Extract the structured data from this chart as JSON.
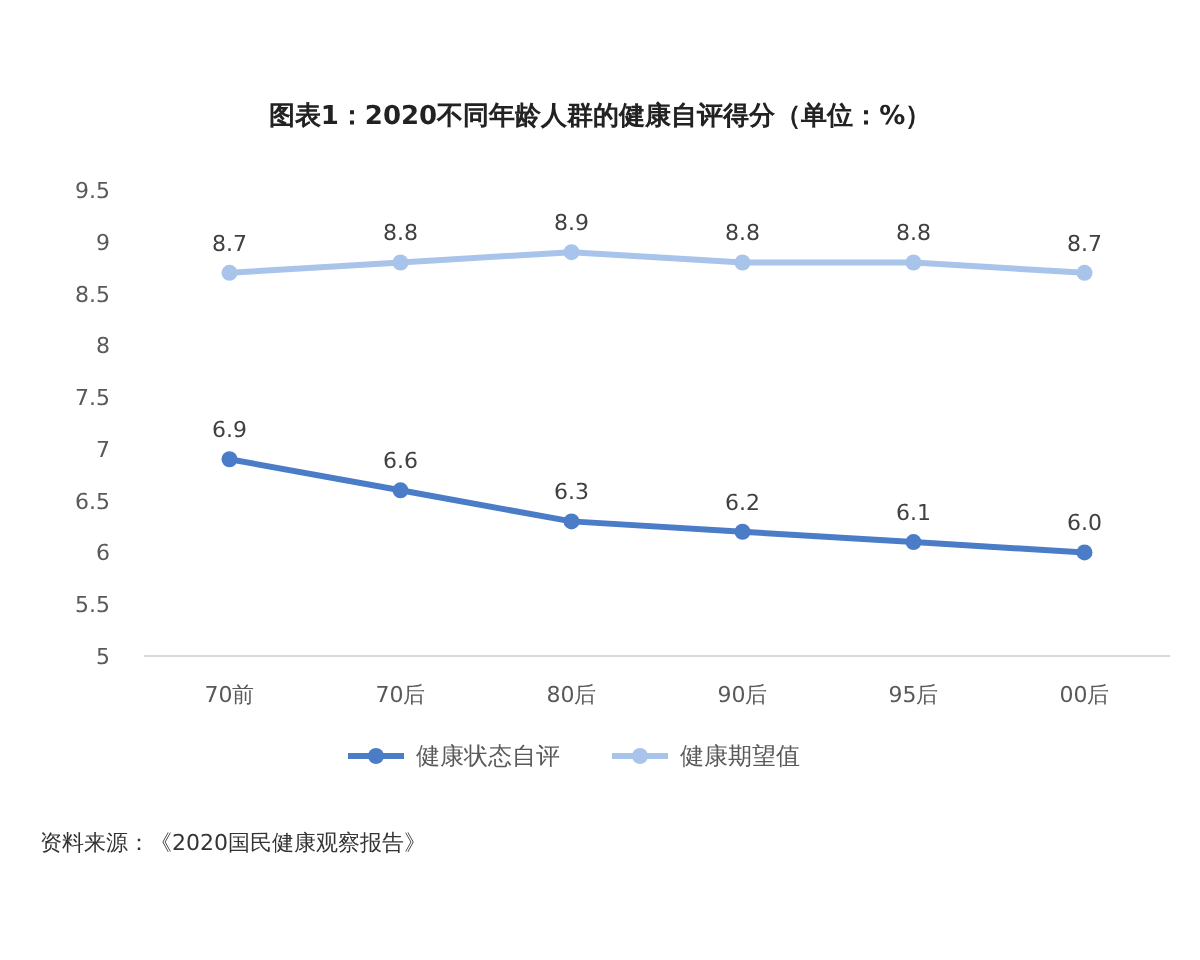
{
  "chart_data": {
    "type": "line",
    "title": "图表1：2020不同年龄人群的健康自评得分（单位：%）",
    "categories": [
      "70前",
      "70后",
      "80后",
      "90后",
      "95后",
      "00后"
    ],
    "series": [
      {
        "name": "健康状态自评",
        "color": "#4a7cc7",
        "values": [
          6.9,
          6.6,
          6.3,
          6.2,
          6.1,
          6.0
        ],
        "value_labels": [
          "6.9",
          "6.6",
          "6.3",
          "6.2",
          "6.1",
          "6.0"
        ]
      },
      {
        "name": "健康期望值",
        "color": "#a9c4ea",
        "values": [
          8.7,
          8.8,
          8.9,
          8.8,
          8.8,
          8.7
        ],
        "value_labels": [
          "8.7",
          "8.8",
          "8.9",
          "8.8",
          "8.8",
          "8.7"
        ]
      }
    ],
    "ylim": [
      5,
      9.5
    ],
    "yticks": [
      5,
      5.5,
      6,
      6.5,
      7,
      7.5,
      8,
      8.5,
      9,
      9.5
    ],
    "marker": "circle",
    "line_style": "solid",
    "legend": "bottom",
    "grid": false,
    "annotations": [
      "资料来源：《2020国民健康观察报告》"
    ]
  }
}
